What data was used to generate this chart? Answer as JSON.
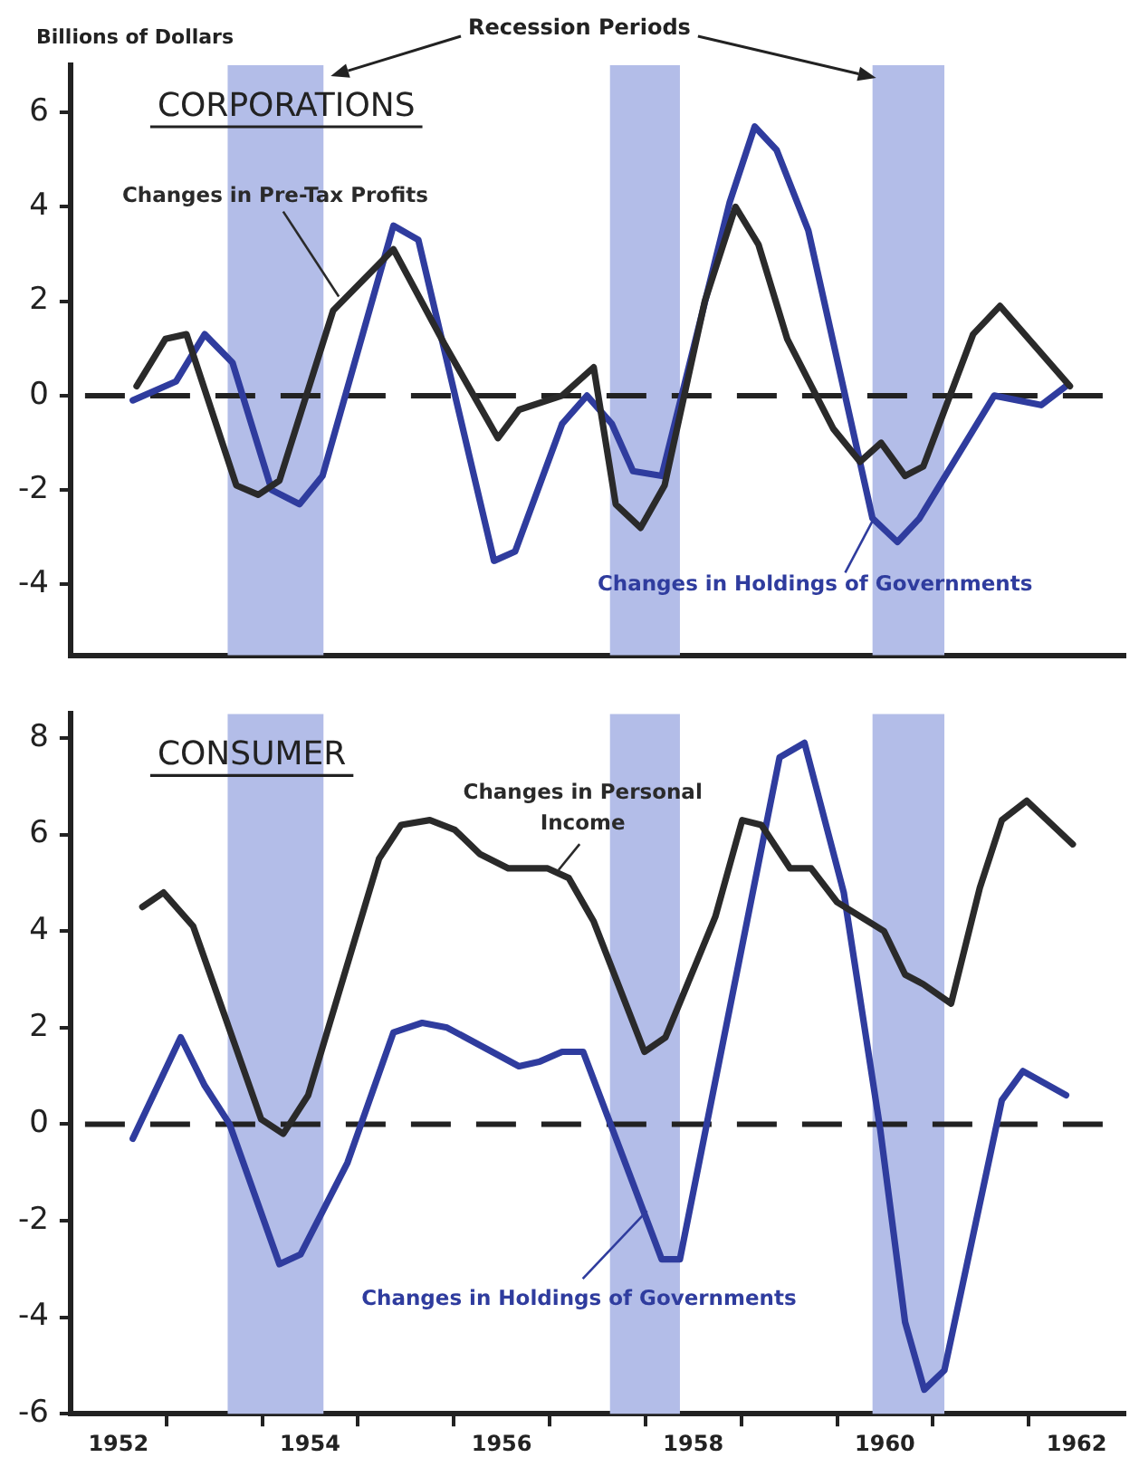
{
  "chart_data": [
    {
      "type": "line",
      "title": "CORPORATIONS",
      "ylabel": "Billions of Dollars",
      "annotations": [
        "Recession Periods"
      ],
      "xlim": [
        1952,
        1963
      ],
      "ylim": [
        -5.5,
        7
      ],
      "yticks": [
        -4,
        -2,
        0,
        2,
        4,
        6
      ],
      "tick_labels": "y",
      "grid": false,
      "legend": false,
      "marker": "none",
      "line_style": "solid",
      "bands": [
        {
          "axis": "x",
          "from": 1953.64,
          "to": 1954.64,
          "color": "#b3bde8"
        },
        {
          "axis": "x",
          "from": 1957.63,
          "to": 1958.36,
          "color": "#b3bde8"
        },
        {
          "axis": "x",
          "from": 1960.37,
          "to": 1961.12,
          "color": "#b3bde8"
        }
      ],
      "ref_lines": [
        {
          "axis": "y",
          "value": 0,
          "color": "#222222",
          "line_style": "dashed"
        }
      ],
      "series": [
        {
          "name": "Changes in Pre-Tax Profits",
          "color": "#2a2a2a",
          "x": [
            1952.69,
            1952.99,
            1953.21,
            1953.73,
            1953.96,
            1954.18,
            1954.74,
            1955.37,
            1955.9,
            1956.46,
            1956.68,
            1957.13,
            1957.46,
            1957.69,
            1957.95,
            1958.2,
            1958.62,
            1958.94,
            1959.18,
            1959.48,
            1959.96,
            1960.24,
            1960.46,
            1960.71,
            1960.9,
            1961.42,
            1961.7,
            1962.43
          ],
          "values": [
            0.2,
            1.2,
            1.3,
            -1.9,
            -2.1,
            -1.8,
            1.8,
            3.1,
            1.1,
            -0.9,
            -0.3,
            0,
            0.6,
            -2.3,
            -2.8,
            -1.9,
            2,
            4,
            3.2,
            1.2,
            -0.7,
            -1.4,
            -1,
            -1.7,
            -1.5,
            1.3,
            1.9,
            0.2
          ]
        },
        {
          "name": "Changes in Holdings of Governments",
          "color": "#2f3c9e",
          "x": [
            1952.65,
            1953.1,
            1953.4,
            1953.69,
            1954.1,
            1954.39,
            1954.63,
            1955.37,
            1955.63,
            1956.42,
            1956.64,
            1957.13,
            1957.39,
            1957.65,
            1957.87,
            1958.17,
            1958.88,
            1959.14,
            1959.37,
            1959.7,
            1960.37,
            1960.63,
            1960.86,
            1961.64,
            1962.13,
            1962.39
          ],
          "values": [
            -0.1,
            0.3,
            1.3,
            0.7,
            -2,
            -2.3,
            -1.7,
            3.6,
            3.3,
            -3.5,
            -3.3,
            -0.6,
            0,
            -0.6,
            -1.6,
            -1.7,
            4.1,
            5.7,
            5.2,
            3.5,
            -2.6,
            -3.1,
            -2.6,
            0,
            -0.2,
            0.2
          ]
        }
      ]
    },
    {
      "type": "line",
      "title": "CONSUMER",
      "xlim": [
        1952,
        1963
      ],
      "ylim": [
        -6,
        8.5
      ],
      "yticks": [
        -6,
        -4,
        -2,
        0,
        2,
        4,
        6,
        8
      ],
      "xticks": [
        {
          "value": 1952.5,
          "label": "1952"
        },
        {
          "value": 1954.5,
          "label": "1954"
        },
        {
          "value": 1956.5,
          "label": "1956"
        },
        {
          "value": 1958.5,
          "label": "1958"
        },
        {
          "value": 1960.5,
          "label": "1960"
        },
        {
          "value": 1962.5,
          "label": "1962"
        },
        {
          "value": 1953,
          "label": null
        },
        {
          "value": 1954,
          "label": null
        },
        {
          "value": 1955,
          "label": null
        },
        {
          "value": 1956,
          "label": null
        },
        {
          "value": 1957,
          "label": null
        },
        {
          "value": 1958,
          "label": null
        },
        {
          "value": 1959,
          "label": null
        },
        {
          "value": 1960,
          "label": null
        },
        {
          "value": 1961,
          "label": null
        },
        {
          "value": 1962,
          "label": null
        }
      ],
      "grid": false,
      "legend": false,
      "marker": "none",
      "line_style": "solid",
      "bands": [
        {
          "axis": "x",
          "from": 1953.64,
          "to": 1954.64,
          "color": "#b3bde8"
        },
        {
          "axis": "x",
          "from": 1957.63,
          "to": 1958.36,
          "color": "#b3bde8"
        },
        {
          "axis": "x",
          "from": 1960.37,
          "to": 1961.12,
          "color": "#b3bde8"
        }
      ],
      "ref_lines": [
        {
          "axis": "y",
          "value": 0,
          "color": "#222222",
          "line_style": "dashed"
        }
      ],
      "series": [
        {
          "name": "Changes in Personal Income",
          "color": "#2a2a2a",
          "x": [
            1952.75,
            1952.97,
            1953.28,
            1953.99,
            1954.22,
            1954.48,
            1955.22,
            1955.45,
            1955.75,
            1956.01,
            1956.27,
            1956.57,
            1956.98,
            1957.2,
            1957.46,
            1957.99,
            1958.21,
            1958.73,
            1959.01,
            1959.21,
            1959.51,
            1959.73,
            1960,
            1960.49,
            1960.71,
            1960.9,
            1961.19,
            1961.49,
            1961.72,
            1961.98,
            1962.46
          ],
          "values": [
            4.5,
            4.8,
            4.1,
            0.1,
            -0.2,
            0.6,
            5.5,
            6.2,
            6.3,
            6.1,
            5.6,
            5.3,
            5.3,
            5.1,
            4.2,
            1.5,
            1.8,
            4.3,
            6.3,
            6.2,
            5.3,
            5.3,
            4.6,
            4,
            3.1,
            2.9,
            2.5,
            4.9,
            6.3,
            6.7,
            5.8
          ]
        },
        {
          "name": "Changes in Holdings of Governments",
          "color": "#2f3c9e",
          "x": [
            1952.65,
            1953.15,
            1953.4,
            1953.66,
            1954.18,
            1954.4,
            1954.89,
            1955.37,
            1955.67,
            1955.93,
            1956.68,
            1956.9,
            1957.13,
            1957.35,
            1958.17,
            1958.36,
            1959.4,
            1959.66,
            1960.07,
            1960.45,
            1960.71,
            1960.91,
            1961.12,
            1961.72,
            1961.94,
            1962.39
          ],
          "values": [
            -0.3,
            1.8,
            0.8,
            0,
            -2.9,
            -2.7,
            -0.8,
            1.9,
            2.1,
            2,
            1.2,
            1.3,
            1.5,
            1.5,
            -2.8,
            -2.8,
            7.6,
            7.9,
            4.8,
            -0.1,
            -4.1,
            -5.5,
            -5.1,
            0.5,
            1.1,
            0.6
          ]
        }
      ]
    }
  ]
}
